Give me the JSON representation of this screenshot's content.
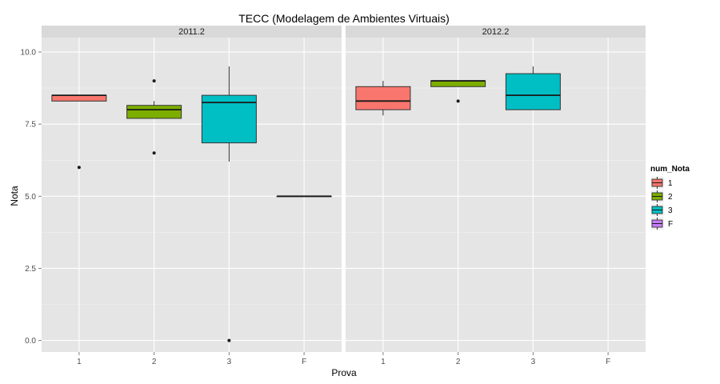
{
  "chart_data": {
    "type": "boxplot",
    "title": "TECC (Modelagem de Ambientes Virtuais)",
    "xlabel": "Prova",
    "ylabel": "Nota",
    "categories": [
      "1",
      "2",
      "3",
      "F"
    ],
    "ylim": [
      -0.4,
      10.5
    ],
    "yticks": [
      0.0,
      2.5,
      5.0,
      7.5,
      10.0
    ],
    "ytick_labels": [
      "0.0",
      "2.5",
      "5.0",
      "7.5",
      "10.0"
    ],
    "grid": true,
    "legend": {
      "title": "num_Nota",
      "position": "right",
      "entries": [
        {
          "label": "1",
          "color": "#F8766D"
        },
        {
          "label": "2",
          "color": "#7CAE00"
        },
        {
          "label": "3",
          "color": "#00BFC4"
        },
        {
          "label": "F",
          "color": "#C77CFF"
        }
      ]
    },
    "panels": [
      {
        "strip": "2011.2",
        "boxes": [
          {
            "category": "1",
            "color": "#F8766D",
            "q1": 8.3,
            "median": 8.5,
            "q3": 8.5,
            "whisker_low": 8.3,
            "whisker_high": 8.5,
            "outliers": [
              6.0
            ]
          },
          {
            "category": "2",
            "color": "#7CAE00",
            "q1": 7.7,
            "median": 8.0,
            "q3": 8.15,
            "whisker_low": 7.7,
            "whisker_high": 8.3,
            "outliers": [
              9.0,
              6.5
            ]
          },
          {
            "category": "3",
            "color": "#00BFC4",
            "q1": 6.85,
            "median": 8.25,
            "q3": 8.5,
            "whisker_low": 6.2,
            "whisker_high": 9.5,
            "outliers": [
              0.0
            ]
          },
          {
            "category": "F",
            "color": "#C77CFF",
            "q1": 5.0,
            "median": 5.0,
            "q3": 5.0,
            "whisker_low": 5.0,
            "whisker_high": 5.0,
            "outliers": []
          }
        ]
      },
      {
        "strip": "2012.2",
        "boxes": [
          {
            "category": "1",
            "color": "#F8766D",
            "q1": 8.0,
            "median": 8.3,
            "q3": 8.8,
            "whisker_low": 7.8,
            "whisker_high": 9.0,
            "outliers": []
          },
          {
            "category": "2",
            "color": "#7CAE00",
            "q1": 8.8,
            "median": 9.0,
            "q3": 9.0,
            "whisker_low": 8.8,
            "whisker_high": 9.0,
            "outliers": [
              8.3
            ]
          },
          {
            "category": "3",
            "color": "#00BFC4",
            "q1": 8.0,
            "median": 8.5,
            "q3": 9.25,
            "whisker_low": 8.0,
            "whisker_high": 9.5,
            "outliers": []
          }
        ]
      }
    ]
  }
}
